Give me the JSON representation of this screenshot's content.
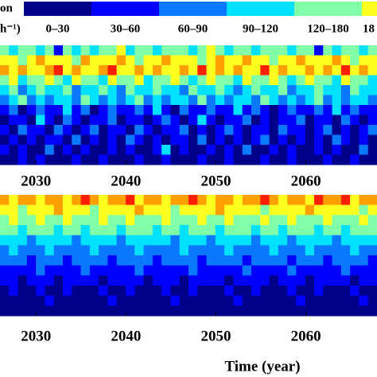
{
  "chart_data": [
    {
      "type": "heatmap",
      "legend": {
        "title": "on",
        "unit": "h⁻¹)",
        "labels": [
          "0–30",
          "30–60",
          "60–90",
          "90–120",
          "120–180",
          "18"
        ],
        "colors": [
          "#00008b",
          "#0000ff",
          "#0a78ff",
          "#00e0ff",
          "#80ffa8",
          "#ffff20"
        ]
      },
      "cell_colors": [
        "#00008b",
        "#0000ff",
        "#0a78ff",
        "#00e0ff",
        "#80ffa8",
        "#ffff20",
        "#ffa000",
        "#ff2000"
      ],
      "xlim": [
        2026,
        2067.9
      ],
      "xticks": [
        2030,
        2040,
        2050,
        2060
      ],
      "values": [
        [
          4,
          3,
          4,
          4,
          3,
          4,
          1,
          4,
          3,
          4,
          3,
          4,
          4,
          5,
          3,
          4,
          4,
          3,
          4,
          4,
          4,
          3,
          4,
          5,
          4,
          3,
          4,
          4,
          3,
          4,
          4,
          4,
          3,
          4,
          4,
          1,
          4,
          3,
          4,
          4,
          3,
          4
        ],
        [
          5,
          5,
          4,
          5,
          6,
          5,
          5,
          5,
          4,
          6,
          5,
          5,
          5,
          6,
          5,
          4,
          5,
          5,
          6,
          5,
          5,
          5,
          4,
          5,
          6,
          5,
          5,
          6,
          5,
          5,
          4,
          5,
          5,
          6,
          5,
          5,
          5,
          6,
          5,
          4,
          5,
          5
        ],
        [
          6,
          5,
          6,
          5,
          5,
          6,
          7,
          5,
          6,
          5,
          5,
          6,
          7,
          5,
          5,
          6,
          5,
          6,
          5,
          5,
          6,
          5,
          7,
          5,
          6,
          5,
          6,
          5,
          5,
          7,
          5,
          6,
          5,
          5,
          6,
          5,
          6,
          5,
          7,
          5,
          6,
          5
        ],
        [
          4,
          5,
          3,
          4,
          4,
          5,
          4,
          3,
          5,
          4,
          4,
          3,
          5,
          4,
          4,
          5,
          3,
          4,
          4,
          5,
          4,
          3,
          4,
          5,
          4,
          4,
          3,
          5,
          4,
          4,
          5,
          4,
          3,
          4,
          5,
          4,
          4,
          3,
          5,
          4,
          4,
          3
        ],
        [
          3,
          4,
          2,
          3,
          4,
          3,
          3,
          4,
          2,
          3,
          3,
          4,
          3,
          2,
          4,
          3,
          3,
          4,
          3,
          3,
          2,
          4,
          3,
          3,
          4,
          3,
          2,
          3,
          4,
          3,
          3,
          4,
          2,
          3,
          3,
          4,
          3,
          3,
          2,
          4,
          3,
          3
        ],
        [
          2,
          3,
          4,
          2,
          3,
          2,
          3,
          3,
          2,
          4,
          3,
          2,
          3,
          2,
          3,
          4,
          2,
          3,
          2,
          3,
          3,
          2,
          4,
          2,
          3,
          2,
          3,
          3,
          2,
          4,
          3,
          2,
          3,
          2,
          3,
          4,
          2,
          3,
          2,
          3,
          3,
          2
        ],
        [
          1,
          2,
          0,
          1,
          2,
          1,
          1,
          3,
          1,
          2,
          0,
          1,
          2,
          1,
          1,
          2,
          1,
          3,
          1,
          0,
          2,
          1,
          1,
          2,
          1,
          1,
          3,
          1,
          2,
          1,
          0,
          1,
          2,
          1,
          1,
          2,
          1,
          3,
          1,
          2,
          1,
          1
        ],
        [
          0,
          1,
          1,
          0,
          3,
          1,
          0,
          2,
          1,
          0,
          1,
          1,
          2,
          0,
          1,
          1,
          0,
          1,
          2,
          1,
          0,
          1,
          3,
          1,
          0,
          1,
          1,
          2,
          0,
          1,
          0,
          1,
          1,
          2,
          0,
          1,
          1,
          0,
          2,
          1,
          0,
          1
        ],
        [
          1,
          0,
          2,
          1,
          1,
          0,
          2,
          1,
          0,
          1,
          2,
          0,
          1,
          1,
          0,
          2,
          1,
          0,
          1,
          1,
          2,
          0,
          1,
          0,
          1,
          2,
          1,
          0,
          1,
          1,
          0,
          2,
          1,
          1,
          0,
          1,
          2,
          0,
          1,
          0,
          1,
          2
        ],
        [
          0,
          1,
          0,
          1,
          0,
          1,
          1,
          0,
          2,
          0,
          1,
          0,
          1,
          0,
          2,
          1,
          0,
          1,
          0,
          1,
          1,
          0,
          2,
          0,
          1,
          0,
          1,
          0,
          1,
          2,
          0,
          1,
          0,
          1,
          0,
          1,
          0,
          2,
          1,
          0,
          1,
          0
        ],
        [
          1,
          0,
          1,
          0,
          0,
          2,
          0,
          1,
          0,
          1,
          0,
          0,
          1,
          0,
          1,
          0,
          0,
          1,
          3,
          0,
          1,
          0,
          0,
          1,
          0,
          1,
          0,
          2,
          0,
          0,
          1,
          0,
          1,
          0,
          0,
          1,
          0,
          1,
          0,
          0,
          2,
          0
        ],
        [
          0,
          0,
          1,
          0,
          1,
          0,
          0,
          0,
          1,
          0,
          0,
          1,
          0,
          0,
          0,
          1,
          0,
          0,
          1,
          0,
          0,
          0,
          1,
          0,
          0,
          1,
          0,
          0,
          0,
          1,
          0,
          0,
          1,
          0,
          0,
          0,
          1,
          0,
          0,
          1,
          0,
          0
        ]
      ]
    },
    {
      "type": "heatmap",
      "cell_colors": [
        "#00008b",
        "#0000ff",
        "#0a78ff",
        "#00e0ff",
        "#80ffa8",
        "#ffff20",
        "#ffa000",
        "#ff2000"
      ],
      "xlim": [
        2026,
        2067.9
      ],
      "xticks": [
        2030,
        2040,
        2050,
        2060
      ],
      "xlabel": "Time (year)",
      "values": [
        [
          6,
          5,
          6,
          6,
          5,
          6,
          6,
          5,
          6,
          7,
          6,
          5,
          6,
          6,
          7,
          5,
          6,
          6,
          5,
          6,
          6,
          7,
          6,
          5,
          6,
          6,
          5,
          6,
          6,
          7,
          6,
          5,
          6,
          6,
          5,
          7,
          6,
          6,
          7,
          5,
          6,
          6
        ],
        [
          5,
          5,
          4,
          5,
          5,
          5,
          6,
          5,
          5,
          5,
          4,
          5,
          5,
          5,
          5,
          6,
          5,
          5,
          5,
          4,
          5,
          5,
          5,
          5,
          6,
          5,
          5,
          5,
          5,
          4,
          5,
          5,
          5,
          5,
          6,
          5,
          5,
          5,
          5,
          5,
          4,
          5
        ],
        [
          4,
          5,
          4,
          4,
          5,
          4,
          4,
          5,
          4,
          4,
          4,
          5,
          4,
          4,
          5,
          4,
          4,
          4,
          5,
          4,
          4,
          4,
          5,
          4,
          4,
          5,
          4,
          4,
          4,
          5,
          4,
          4,
          5,
          4,
          4,
          4,
          5,
          4,
          4,
          4,
          5,
          4
        ],
        [
          4,
          4,
          3,
          4,
          4,
          4,
          3,
          4,
          4,
          3,
          4,
          4,
          4,
          3,
          4,
          4,
          4,
          3,
          4,
          4,
          3,
          4,
          4,
          4,
          3,
          4,
          4,
          4,
          3,
          4,
          4,
          3,
          4,
          4,
          4,
          3,
          4,
          4,
          3,
          4,
          4,
          4
        ],
        [
          3,
          3,
          3,
          2,
          3,
          3,
          3,
          3,
          2,
          3,
          3,
          3,
          3,
          2,
          3,
          3,
          3,
          3,
          3,
          2,
          3,
          3,
          3,
          2,
          3,
          3,
          3,
          3,
          2,
          3,
          3,
          3,
          2,
          3,
          3,
          3,
          3,
          2,
          3,
          3,
          3,
          3
        ],
        [
          2,
          3,
          2,
          2,
          2,
          3,
          2,
          2,
          2,
          2,
          3,
          2,
          2,
          2,
          2,
          3,
          2,
          2,
          2,
          2,
          3,
          2,
          2,
          2,
          2,
          3,
          2,
          2,
          2,
          2,
          3,
          2,
          2,
          2,
          3,
          2,
          2,
          2,
          2,
          3,
          2,
          2
        ],
        [
          2,
          2,
          2,
          1,
          2,
          2,
          2,
          1,
          2,
          2,
          2,
          2,
          1,
          2,
          2,
          2,
          2,
          1,
          2,
          2,
          2,
          2,
          1,
          2,
          2,
          2,
          2,
          1,
          2,
          2,
          2,
          2,
          1,
          2,
          2,
          2,
          1,
          2,
          2,
          2,
          2,
          1
        ],
        [
          1,
          1,
          1,
          1,
          2,
          1,
          1,
          1,
          1,
          2,
          1,
          1,
          1,
          1,
          1,
          2,
          1,
          1,
          1,
          1,
          1,
          2,
          1,
          1,
          1,
          1,
          1,
          2,
          1,
          1,
          1,
          1,
          2,
          1,
          1,
          1,
          1,
          1,
          2,
          1,
          1,
          1
        ],
        [
          1,
          1,
          0,
          1,
          1,
          1,
          0,
          1,
          1,
          1,
          1,
          0,
          1,
          1,
          1,
          1,
          0,
          1,
          1,
          1,
          0,
          1,
          1,
          1,
          1,
          0,
          1,
          1,
          1,
          1,
          0,
          1,
          1,
          1,
          0,
          1,
          1,
          1,
          1,
          0,
          1,
          1
        ],
        [
          0,
          1,
          0,
          0,
          1,
          0,
          0,
          1,
          0,
          0,
          0,
          1,
          0,
          0,
          1,
          0,
          0,
          0,
          1,
          0,
          0,
          1,
          0,
          0,
          0,
          1,
          0,
          0,
          1,
          0,
          0,
          0,
          1,
          0,
          0,
          1,
          0,
          0,
          0,
          1,
          0,
          0
        ],
        [
          0,
          0,
          0,
          0,
          0,
          1,
          0,
          0,
          0,
          0,
          0,
          0,
          1,
          0,
          0,
          0,
          0,
          0,
          0,
          1,
          0,
          0,
          0,
          0,
          0,
          0,
          1,
          0,
          0,
          0,
          0,
          0,
          0,
          1,
          0,
          0,
          0,
          0,
          0,
          0,
          1,
          0
        ],
        [
          0,
          0,
          0,
          0,
          0,
          0,
          0,
          0,
          0,
          0,
          0,
          0,
          0,
          0,
          0,
          0,
          0,
          0,
          0,
          0,
          0,
          0,
          0,
          0,
          0,
          0,
          0,
          0,
          0,
          0,
          0,
          0,
          0,
          0,
          0,
          0,
          0,
          0,
          0,
          0,
          0,
          0
        ]
      ]
    }
  ]
}
